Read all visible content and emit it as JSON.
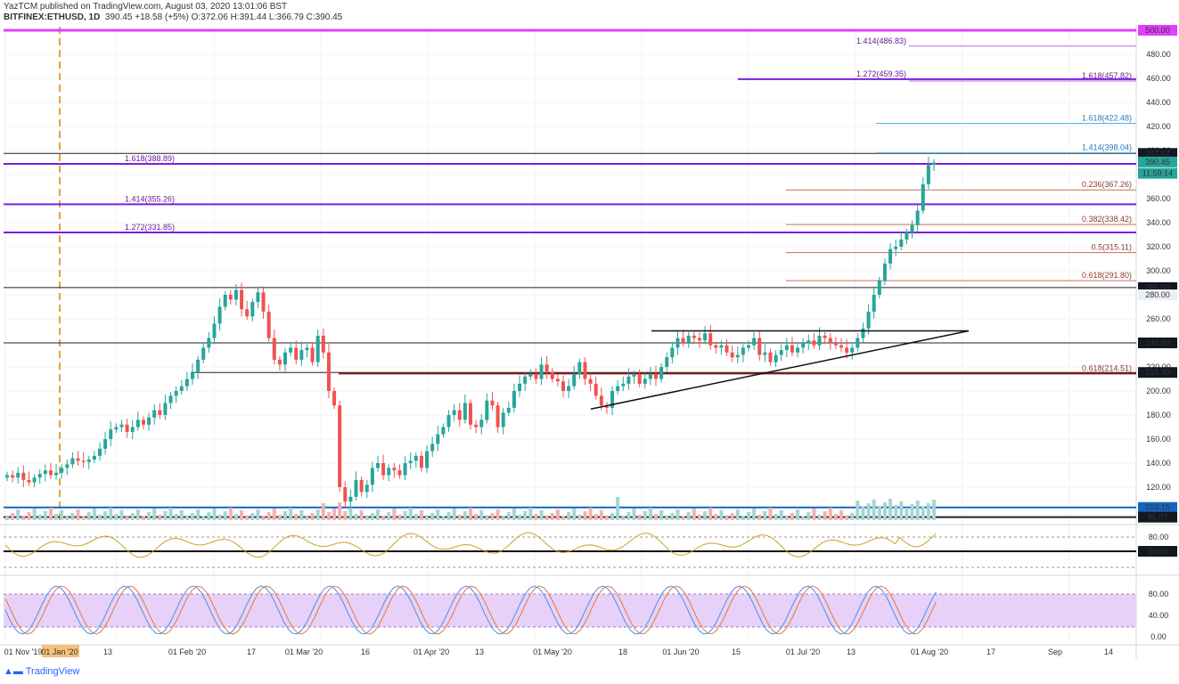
{
  "header": {
    "line1": "YazTCM published on TradingView.com, August 03, 2020 13:01:06 BST",
    "symbol": "BITFINEX:ETHUSD, 1D",
    "ohlc": "390.45  +18.58 (+5%)  O:372.06  H:391.44  L:366.79  C:390.45"
  },
  "footer": {
    "brand": "TradingView"
  },
  "colors": {
    "up": "#26a69a",
    "down": "#ef5350",
    "fib_ext": "#7b1fe0",
    "fib_ret": "#c0705a",
    "fib_light": "#4aa8d8",
    "magenta": "#e040fb",
    "rsi": "#c9a227",
    "stoch_k": "#4a8fe8",
    "stoch_d": "#e07a3a",
    "stoch_band": "#e6ccf7"
  },
  "chart_data": {
    "type": "candlestick",
    "symbol": "ETHUSD",
    "timeframe": "1D",
    "price_axis_ticks": [
      500,
      480,
      460,
      440,
      420,
      400,
      380,
      360,
      340,
      320,
      300,
      280,
      260,
      240,
      220,
      200,
      180,
      160,
      140,
      120,
      100
    ],
    "time_axis_labels": [
      "01 Nov '19",
      "01 Jan '20",
      "13",
      "01 Feb '20",
      "17",
      "01 Mar '20",
      "16",
      "01 Apr '20",
      "13",
      "01 May '20",
      "18",
      "01 Jun '20",
      "15",
      "01 Jul '20",
      "13",
      "01 Aug '20",
      "17",
      "Sep",
      "14"
    ],
    "price_badges": [
      {
        "value": "500.00",
        "kind": "magenta"
      },
      {
        "value": "397.57",
        "kind": "dark"
      },
      {
        "value": "390.45",
        "kind": "up"
      },
      {
        "value": "11:59:14",
        "kind": "up"
      },
      {
        "value": "286.00",
        "kind": "dark"
      },
      {
        "value": "280.00",
        "kind": "grey"
      },
      {
        "value": "240.00",
        "kind": "dark"
      },
      {
        "value": "215.40",
        "kind": "dark"
      },
      {
        "value": "103.15",
        "kind": "blue"
      },
      {
        "value": "95.07",
        "kind": "dark"
      }
    ],
    "fib_extensions": [
      {
        "label": "1.618(388.89)",
        "value": 388.89
      },
      {
        "label": "1.414(355.26)",
        "value": 355.26
      },
      {
        "label": "1.272(331.85)",
        "value": 331.85
      },
      {
        "label": "1.414(486.83)",
        "value": 486.83
      },
      {
        "label": "1.272(459.35)",
        "value": 459.35
      },
      {
        "label": "1.618(457.82)",
        "value": 457.82
      },
      {
        "label": "1.618(422.48)",
        "value": 422.48
      },
      {
        "label": "1.414(398.04)",
        "value": 398.04
      }
    ],
    "fib_retracements": [
      {
        "label": "0.236(367.26)",
        "value": 367.26
      },
      {
        "label": "0.382(338.42)",
        "value": 338.42
      },
      {
        "label": "0.5(315.11)",
        "value": 315.11
      },
      {
        "label": "0.618(291.80)",
        "value": 291.8
      },
      {
        "label": "0.618(214.51)",
        "value": 214.51
      }
    ],
    "horizontal_levels": [
      500,
      397.57,
      286,
      240,
      215.4,
      103.15,
      95.07
    ],
    "triangle": {
      "upper": 250,
      "lower_start": 185,
      "apex": 250
    },
    "rsi": {
      "ticks": [
        "80.00",
        "50.00"
      ],
      "badge": "50.00"
    },
    "stoch_rsi": {
      "ticks": [
        "80.00",
        "40.00",
        "0.00"
      ]
    },
    "candles_close": [
      130,
      128,
      132,
      126,
      124,
      128,
      131,
      134,
      130,
      132,
      136,
      139,
      144,
      142,
      141,
      143,
      146,
      152,
      160,
      168,
      170,
      172,
      166,
      170,
      176,
      172,
      178,
      184,
      180,
      190,
      196,
      200,
      204,
      210,
      216,
      226,
      236,
      244,
      256,
      270,
      280,
      276,
      284,
      268,
      262,
      274,
      282,
      266,
      244,
      226,
      222,
      232,
      236,
      226,
      234,
      236,
      224,
      246,
      232,
      200,
      188,
      120,
      108,
      112,
      126,
      116,
      122,
      136,
      140,
      130,
      136,
      134,
      130,
      140,
      142,
      146,
      136,
      150,
      156,
      164,
      170,
      180,
      184,
      176,
      190,
      172,
      170,
      176,
      192,
      188,
      170,
      182,
      186,
      200,
      206,
      212,
      214,
      210,
      222,
      216,
      210,
      208,
      200,
      204,
      214,
      224,
      210,
      206,
      196,
      188,
      186,
      200,
      204,
      206,
      212,
      214,
      206,
      210,
      214,
      210,
      220,
      228,
      236,
      244,
      240,
      246,
      244,
      242,
      248,
      238,
      236,
      238,
      232,
      228,
      230,
      236,
      238,
      244,
      230,
      232,
      224,
      230,
      234,
      238,
      232,
      236,
      240,
      242,
      238,
      246,
      244,
      240,
      238,
      236,
      232,
      236,
      244,
      252,
      266,
      280,
      292,
      306,
      318,
      320,
      326,
      332,
      338,
      350,
      372,
      388,
      390
    ]
  }
}
